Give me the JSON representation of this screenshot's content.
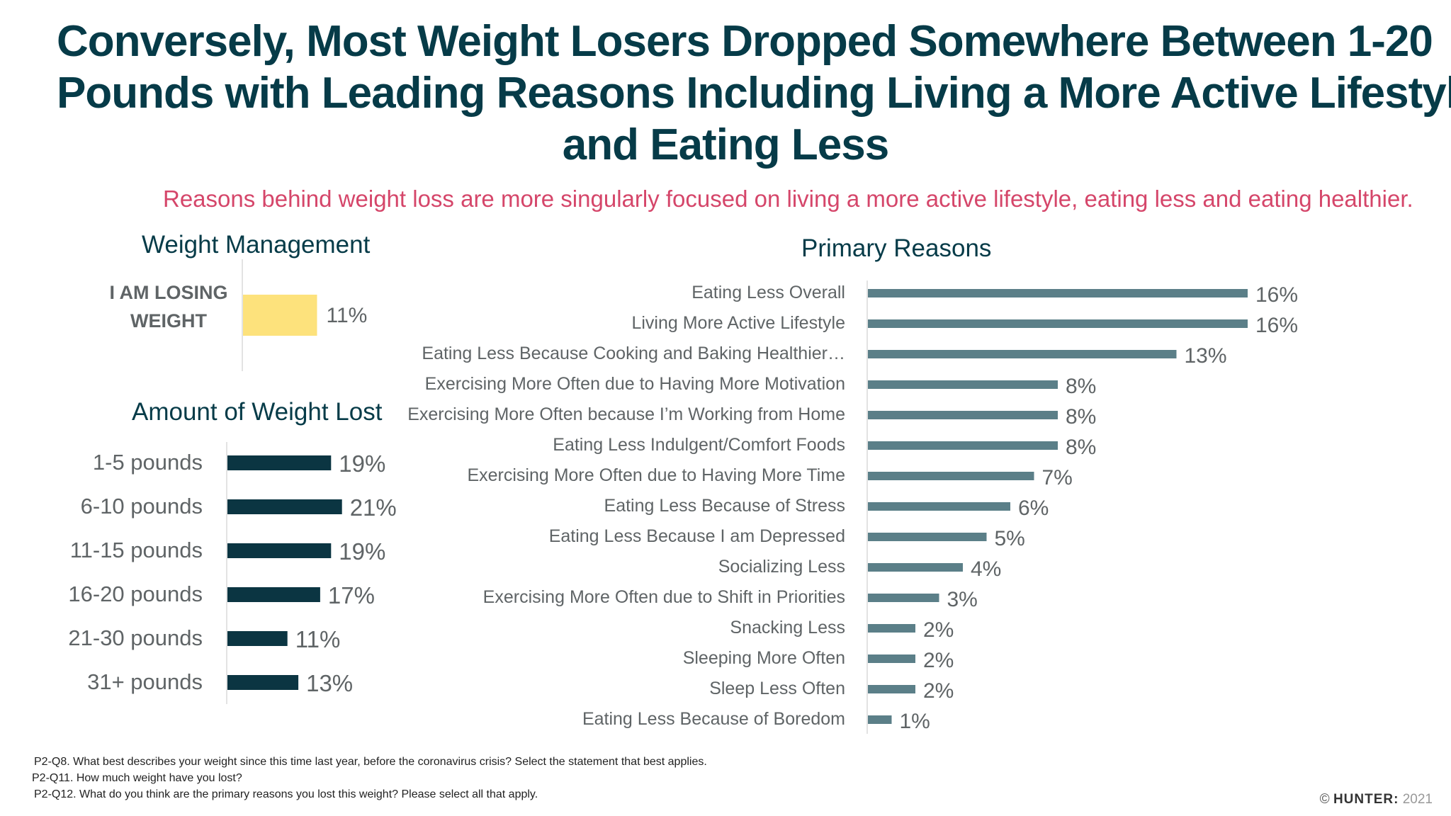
{
  "title": {
    "line1": "Conversely, Most Weight Losers Dropped Somewhere Between 1-20",
    "line2": "Pounds with Leading Reasons Including Living a More Active Lifestyle",
    "line3": "and Eating Less"
  },
  "subtitle": "Reasons behind weight loss are more singularly focused on living a more active lifestyle,  eating less and eating healthier.",
  "colors": {
    "title": "#063b48",
    "subtitle": "#d5466a",
    "management_bar": "#fde27c",
    "amount_bar": "#0b3542",
    "reasons_bar": "#5b7f88"
  },
  "chart_data": [
    {
      "type": "bar",
      "orientation": "horizontal",
      "title": "Weight Management",
      "categories": [
        "I AM LOSING WEIGHT"
      ],
      "category_lines": [
        [
          "I AM LOSING",
          "WEIGHT"
        ]
      ],
      "values": [
        11
      ],
      "labels": [
        "11%"
      ],
      "xlim": [
        0,
        100
      ]
    },
    {
      "type": "bar",
      "orientation": "horizontal",
      "title": "Amount of Weight Lost",
      "categories": [
        "1-5 pounds",
        "6-10 pounds",
        "11-15 pounds",
        "16-20 pounds",
        "21-30 pounds",
        "31+ pounds"
      ],
      "values": [
        19,
        21,
        19,
        17,
        11,
        13
      ],
      "labels": [
        "19%",
        "21%",
        "19%",
        "17%",
        "11%",
        "13%"
      ],
      "xlim": [
        0,
        100
      ]
    },
    {
      "type": "bar",
      "orientation": "horizontal",
      "title": "Primary Reasons",
      "categories": [
        "Eating Less Overall",
        "Living More Active Lifestyle",
        "Eating Less Because Cooking and Baking Healthier…",
        "Exercising More Often due to Having More Motivation",
        "Exercising More Often because I’m Working from Home",
        "Eating Less Indulgent/Comfort Foods",
        "Exercising More Often due to Having More Time",
        "Eating Less Because of Stress",
        "Eating Less Because I am Depressed",
        "Socializing Less",
        "Exercising More Often due to Shift in Priorities",
        "Snacking Less",
        "Sleeping More Often",
        "Sleep Less Often",
        "Eating Less Because of Boredom"
      ],
      "values": [
        16,
        16,
        13,
        8,
        8,
        8,
        7,
        6,
        5,
        4,
        3,
        2,
        2,
        2,
        1
      ],
      "labels": [
        "16%",
        "16%",
        "13%",
        "8%",
        "8%",
        "8%",
        "7%",
        "6%",
        "5%",
        "4%",
        "3%",
        "2%",
        "2%",
        "2%",
        "1%"
      ],
      "xlim": [
        0,
        16
      ]
    }
  ],
  "footnotes": [
    "P2-Q8.  What best describes your weight since this time last year, before the coronavirus crisis? Select the statement that best applies.",
    "P2-Q11.  How much weight have you lost?",
    "P2-Q12. What do you think are the primary reasons you lost this weight? Please select all that apply."
  ],
  "copyright": {
    "symbol": "©",
    "brand": "HUNTER:",
    "year": "2021"
  }
}
